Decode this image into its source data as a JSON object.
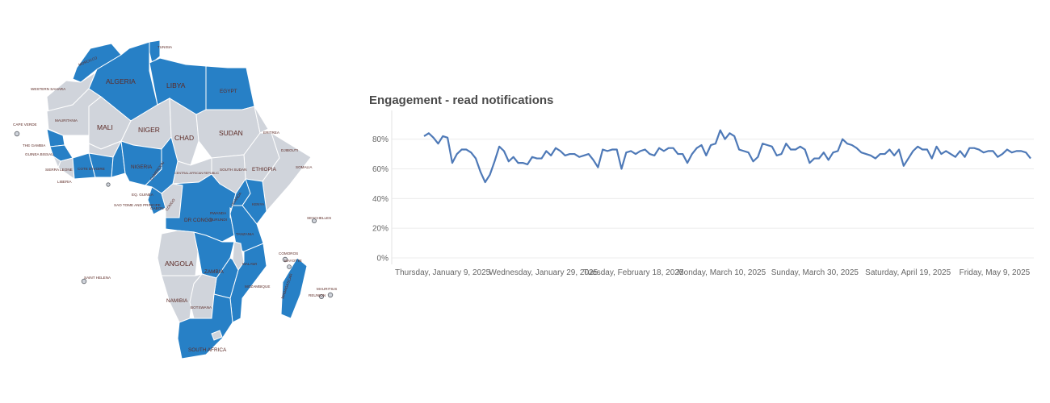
{
  "colors": {
    "highlight": "#2780c6",
    "base": "#d0d4db",
    "line": "#4e79b7"
  },
  "map": {
    "labels": {
      "tunisia": "TUNISIA",
      "morocco": "MOROCCO",
      "algeria": "ALGERIA",
      "libya": "LIBYA",
      "egypt": "EGYPT",
      "western_sahara": "WESTERN SAHARA",
      "mauritania": "MAURITANIA",
      "mali": "MALI",
      "niger": "NIGER",
      "chad": "CHAD",
      "sudan": "SUDAN",
      "eritrea": "ERITREA",
      "djibouti": "DJIBOUTI",
      "somalia": "SOMALIA",
      "ethiopia": "ETHIOPIA",
      "south_sudan": "SOUTH SUDAN",
      "car": "CENTRAL AFRICAN REPUBLIC",
      "nigeria": "NIGERIA",
      "cameroon": "CAMEROON",
      "cape_verde": "CAPE VERDE",
      "the_gambia": "THE GAMBIA",
      "guinea_bissau": "GUINEA BISSAU",
      "sierra_leone": "SIERRA LEONE",
      "liberia": "LIBERIA",
      "cote_divoire": "COTE D'IVOIRE",
      "eq_guinea": "EQ. GUINEA",
      "sao_tome": "SAO TOME AND PRINCIPE",
      "gabon": "GABON",
      "congo": "CONGO",
      "dr_congo": "DR CONGO",
      "uganda": "UGANDA",
      "kenya": "KENYA",
      "rwanda": "RWANDA",
      "burundi": "BURUNDI",
      "tanzania": "TANZANIA",
      "seychelles": "SEYCHELLES",
      "comoros": "COMOROS",
      "mayotte": "MAYOTTE",
      "angola": "ANGOLA",
      "zambia": "ZAMBIA",
      "malawi": "MALAWI",
      "mozambique": "MOZAMBIQUE",
      "madagascar": "MADAGASCAR",
      "mauritius": "MAURITIUS",
      "reunion": "REUNION",
      "saint_helena": "SAINT HELENA",
      "namibia": "NAMIBIA",
      "botswana": "BOTSWANA",
      "south_africa": "SOUTH AFRICA"
    }
  },
  "chart_data": {
    "type": "line",
    "title": "Engagement - read notifications",
    "xlabel": "",
    "ylabel": "",
    "ylim": [
      0,
      95
    ],
    "y_ticks": [
      0,
      20,
      40,
      60,
      80
    ],
    "y_tick_labels": [
      "0%",
      "20%",
      "40%",
      "60%",
      "80%"
    ],
    "x_tick_labels": [
      "Thursday, January 9, 2025",
      "Wednesday, January 29, 2025",
      "Tuesday, February 18, 2025",
      "Monday, March 10, 2025",
      "Sunday, March 30, 2025",
      "Saturday, April 19, 2025",
      "Friday, May 9, 2025"
    ],
    "x_tick_day_index": [
      0,
      20,
      40,
      60,
      80,
      100,
      120
    ],
    "x_start": "2025-01-09",
    "series": [
      {
        "name": "Read notifications",
        "unit": "%",
        "values": [
          82,
          84,
          81,
          77,
          82,
          81,
          64,
          70,
          73,
          73,
          71,
          67,
          58,
          51,
          56,
          65,
          75,
          72,
          65,
          68,
          64,
          64,
          63,
          68,
          67,
          67,
          72,
          69,
          74,
          72,
          69,
          70,
          70,
          68,
          69,
          70,
          66,
          61,
          73,
          72,
          73,
          73,
          60,
          71,
          72,
          70,
          72,
          73,
          70,
          69,
          74,
          72,
          74,
          74,
          70,
          70,
          64,
          70,
          74,
          76,
          69,
          76,
          77,
          86,
          80,
          84,
          82,
          73,
          72,
          71,
          65,
          68,
          77,
          76,
          75,
          69,
          70,
          77,
          73,
          73,
          75,
          73,
          64,
          67,
          67,
          71,
          66,
          71,
          72,
          80,
          77,
          76,
          74,
          71,
          70,
          69,
          67,
          70,
          70,
          73,
          69,
          73,
          62,
          67,
          72,
          75,
          73,
          73,
          67,
          75,
          70,
          72,
          70,
          68,
          72,
          68,
          74,
          74,
          73,
          71,
          72,
          72,
          68,
          70,
          73,
          71,
          72,
          72,
          71,
          67
        ]
      }
    ]
  }
}
